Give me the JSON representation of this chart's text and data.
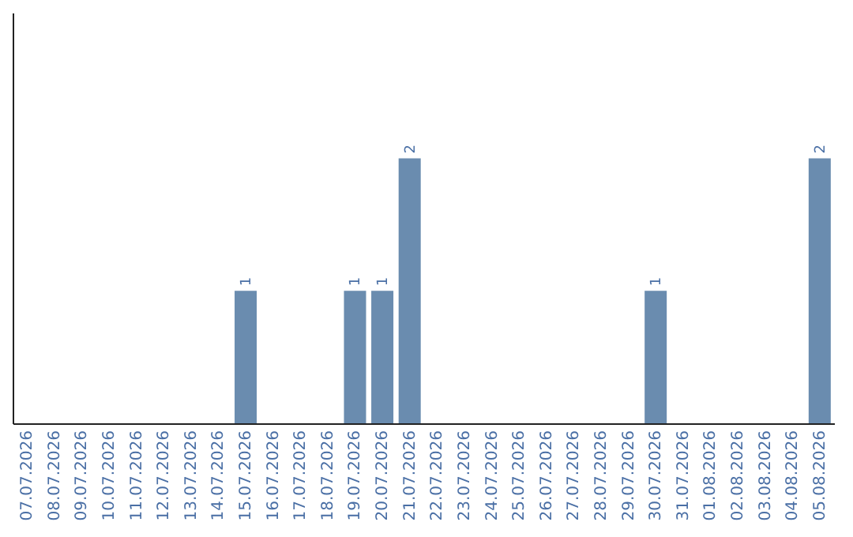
{
  "chart_data": {
    "type": "bar",
    "categories": [
      "07.07.2026",
      "08.07.2026",
      "09.07.2026",
      "10.07.2026",
      "11.07.2026",
      "12.07.2026",
      "13.07.2026",
      "14.07.2026",
      "15.07.2026",
      "16.07.2026",
      "17.07.2026",
      "18.07.2026",
      "19.07.2026",
      "20.07.2026",
      "21.07.2026",
      "22.07.2026",
      "23.07.2026",
      "24.07.2026",
      "25.07.2026",
      "26.07.2026",
      "27.07.2026",
      "28.07.2026",
      "29.07.2026",
      "30.07.2026",
      "31.07.2026",
      "01.08.2026",
      "02.08.2026",
      "03.08.2026",
      "04.08.2026",
      "05.08.2026"
    ],
    "values": [
      0,
      0,
      0,
      0,
      0,
      0,
      0,
      0,
      1,
      0,
      0,
      0,
      1,
      1,
      2,
      0,
      0,
      0,
      0,
      0,
      0,
      0,
      0,
      1,
      0,
      0,
      0,
      0,
      0,
      2
    ],
    "value_labels": [
      null,
      null,
      null,
      null,
      null,
      null,
      null,
      null,
      "1",
      null,
      null,
      null,
      "1",
      "1",
      "2",
      null,
      null,
      null,
      null,
      null,
      null,
      null,
      null,
      "1",
      null,
      null,
      null,
      null,
      null,
      "2"
    ],
    "color": "#6a8caf",
    "ylim": [
      0,
      3.1
    ],
    "tick_labels": "x"
  }
}
